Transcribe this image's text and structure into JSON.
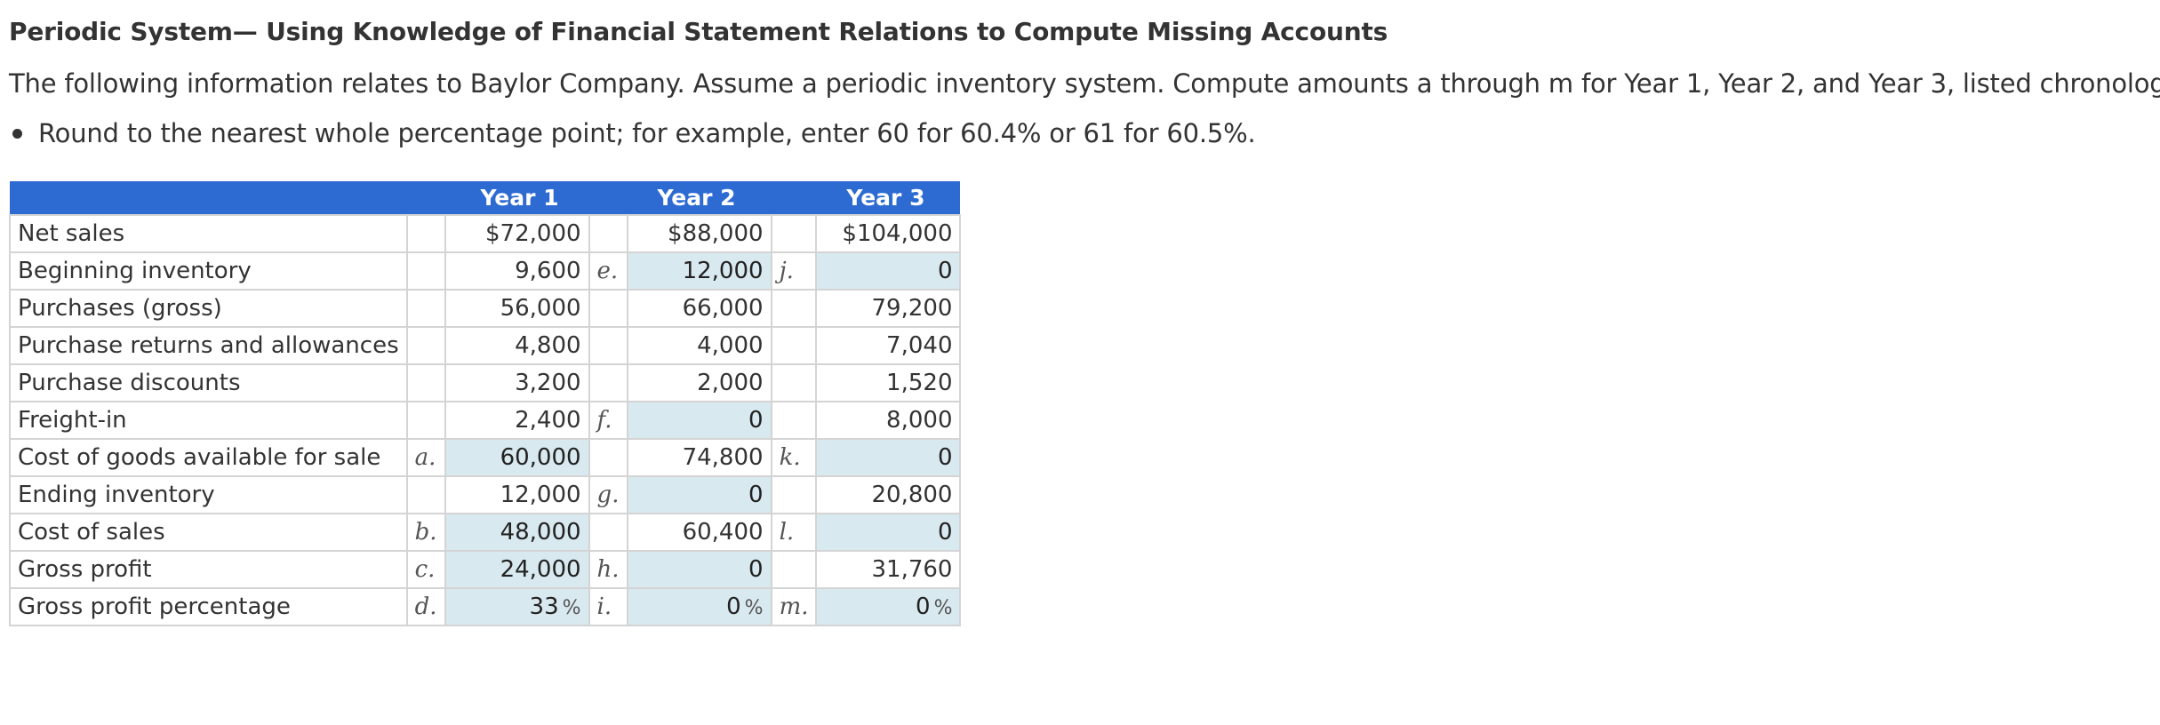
{
  "title": "Periodic System— Using Knowledge of Financial Statement Relations to Compute Missing Accounts",
  "intro": "The following information relates to Baylor Company. Assume a periodic inventory system. Compute amounts a through m for Year 1, Year 2, and Year 3, listed chronologically.",
  "instruction": "Round to the nearest whole percentage point; for example, enter 60 for 60.4% or 61 for 60.5%.",
  "table": {
    "headers": [
      "Year 1",
      "Year 2",
      "Year 3"
    ],
    "rows": [
      {
        "label": "Net sales",
        "y1_letter": "",
        "y1": "$72,000",
        "y1_input": false,
        "y2_letter": "",
        "y2": "$88,000",
        "y2_input": false,
        "y3_letter": "",
        "y3": "$104,000",
        "y3_input": false
      },
      {
        "label": "Beginning inventory",
        "y1_letter": "",
        "y1": "9,600",
        "y1_input": false,
        "y2_letter": "e.",
        "y2": "12,000",
        "y2_input": true,
        "y3_letter": "j.",
        "y3": "0",
        "y3_input": true
      },
      {
        "label": "Purchases (gross)",
        "y1_letter": "",
        "y1": "56,000",
        "y1_input": false,
        "y2_letter": "",
        "y2": "66,000",
        "y2_input": false,
        "y3_letter": "",
        "y3": "79,200",
        "y3_input": false
      },
      {
        "label": "Purchase returns and allowances",
        "y1_letter": "",
        "y1": "4,800",
        "y1_input": false,
        "y2_letter": "",
        "y2": "4,000",
        "y2_input": false,
        "y3_letter": "",
        "y3": "7,040",
        "y3_input": false
      },
      {
        "label": "Purchase discounts",
        "y1_letter": "",
        "y1": "3,200",
        "y1_input": false,
        "y2_letter": "",
        "y2": "2,000",
        "y2_input": false,
        "y3_letter": "",
        "y3": "1,520",
        "y3_input": false
      },
      {
        "label": "Freight-in",
        "y1_letter": "",
        "y1": "2,400",
        "y1_input": false,
        "y2_letter": "f.",
        "y2": "0",
        "y2_input": true,
        "y3_letter": "",
        "y3": "8,000",
        "y3_input": false
      },
      {
        "label": "Cost of goods available for sale",
        "y1_letter": "a.",
        "y1": "60,000",
        "y1_input": true,
        "y2_letter": "",
        "y2": "74,800",
        "y2_input": false,
        "y3_letter": "k.",
        "y3": "0",
        "y3_input": true
      },
      {
        "label": "Ending inventory",
        "y1_letter": "",
        "y1": "12,000",
        "y1_input": false,
        "y2_letter": "g.",
        "y2": "0",
        "y2_input": true,
        "y3_letter": "",
        "y3": "20,800",
        "y3_input": false
      },
      {
        "label": "Cost of sales",
        "y1_letter": "b.",
        "y1": "48,000",
        "y1_input": true,
        "y2_letter": "",
        "y2": "60,400",
        "y2_input": false,
        "y3_letter": "l.",
        "y3": "0",
        "y3_input": true
      },
      {
        "label": "Gross profit",
        "y1_letter": "c.",
        "y1": "24,000",
        "y1_input": true,
        "y2_letter": "h.",
        "y2": "0",
        "y2_input": true,
        "y3_letter": "",
        "y3": "31,760",
        "y3_input": false
      },
      {
        "label": "Gross profit percentage",
        "y1_letter": "d.",
        "y1": "33",
        "y1_input": true,
        "y1_suffix": "%",
        "y2_letter": "i.",
        "y2": "0",
        "y2_input": true,
        "y2_suffix": "%",
        "y3_letter": "m.",
        "y3": "0",
        "y3_input": true,
        "y3_suffix": "%"
      }
    ]
  }
}
